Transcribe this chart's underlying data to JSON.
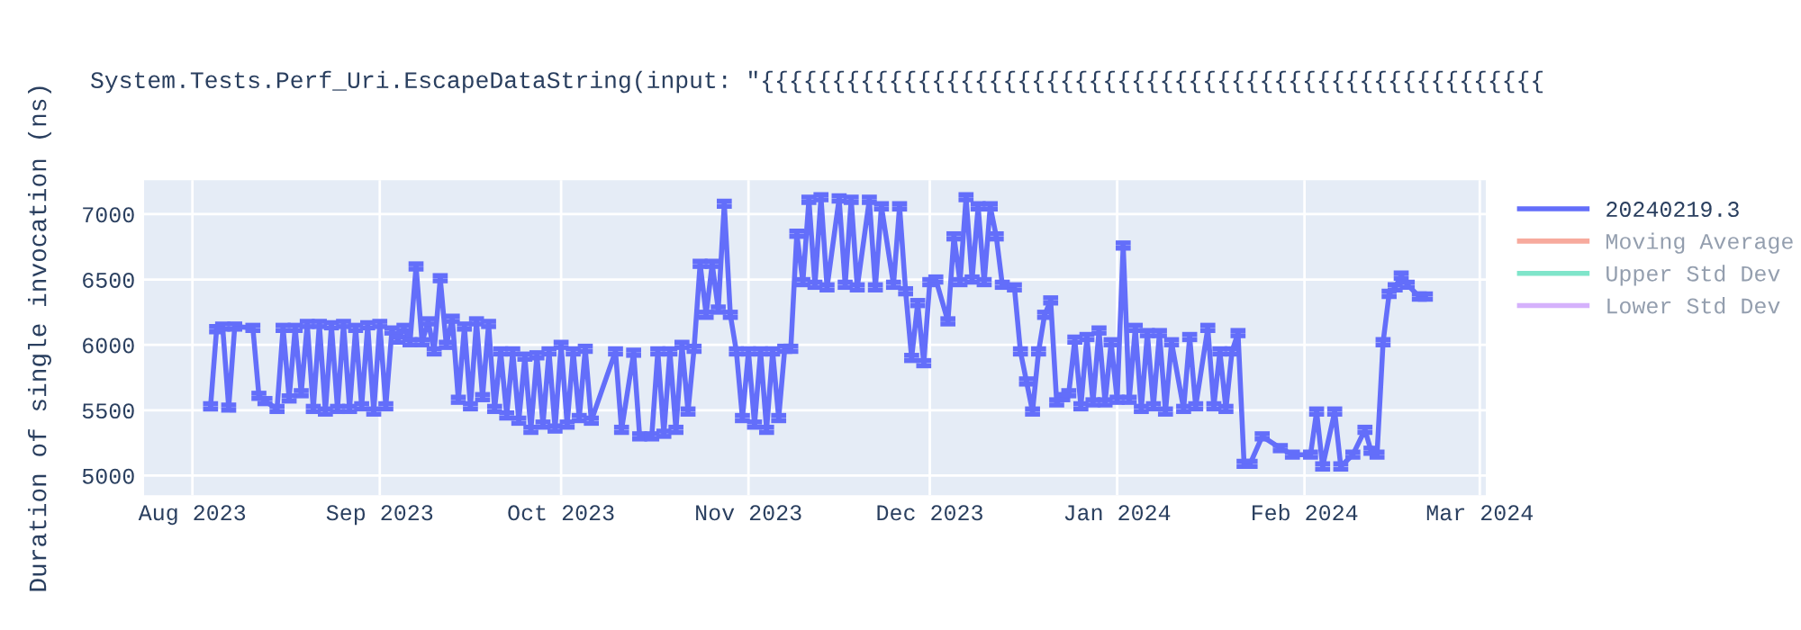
{
  "chart_data": {
    "type": "line",
    "title": "System.Tests.Perf_Uri.EscapeDataString(input: \"{{{{{{{{{{{{{{{{{{{{{{{{{{{{{{{{{{{{{{{{{{{{{{{{{{{{{{{",
    "ylabel": "Duration of single invocation (ns)",
    "xlim": [
      "2023-07-24",
      "2024-03-02"
    ],
    "xticks": [
      {
        "value": "2023-08-01",
        "label": "Aug 2023"
      },
      {
        "value": "2023-09-01",
        "label": "Sep 2023"
      },
      {
        "value": "2023-10-01",
        "label": "Oct 2023"
      },
      {
        "value": "2023-11-01",
        "label": "Nov 2023"
      },
      {
        "value": "2023-12-01",
        "label": "Dec 2023"
      },
      {
        "value": "2024-01-01",
        "label": "Jan 2024"
      },
      {
        "value": "2024-02-01",
        "label": "Feb 2024"
      },
      {
        "value": "2024-03-01",
        "label": "Mar 2024"
      }
    ],
    "ylim": [
      4850,
      7260
    ],
    "yticks": [
      5000,
      5500,
      6000,
      6500,
      7000
    ],
    "grid": true,
    "legend": "top right",
    "marker": "none",
    "line_style": "solid",
    "series": [
      {
        "name": "20240219.3",
        "color": "#636efa",
        "x": [
          "2023-08-04",
          "2023-08-05",
          "2023-08-06",
          "2023-08-07",
          "2023-08-08",
          "2023-08-11",
          "2023-08-12",
          "2023-08-13",
          "2023-08-15",
          "2023-08-16",
          "2023-08-17",
          "2023-08-18",
          "2023-08-19",
          "2023-08-20",
          "2023-08-21",
          "2023-08-22",
          "2023-08-23",
          "2023-08-24",
          "2023-08-25",
          "2023-08-26",
          "2023-08-27",
          "2023-08-28",
          "2023-08-29",
          "2023-08-30",
          "2023-08-31",
          "2023-09-01",
          "2023-09-02",
          "2023-09-03",
          "2023-09-04",
          "2023-09-05",
          "2023-09-06",
          "2023-09-07",
          "2023-09-08",
          "2023-09-09",
          "2023-09-10",
          "2023-09-11",
          "2023-09-12",
          "2023-09-13",
          "2023-09-14",
          "2023-09-15",
          "2023-09-16",
          "2023-09-17",
          "2023-09-18",
          "2023-09-19",
          "2023-09-20",
          "2023-09-21",
          "2023-09-22",
          "2023-09-23",
          "2023-09-24",
          "2023-09-25",
          "2023-09-26",
          "2023-09-27",
          "2023-09-28",
          "2023-09-29",
          "2023-09-30",
          "2023-10-01",
          "2023-10-02",
          "2023-10-03",
          "2023-10-04",
          "2023-10-05",
          "2023-10-06",
          "2023-10-10",
          "2023-10-11",
          "2023-10-13",
          "2023-10-14",
          "2023-10-16",
          "2023-10-17",
          "2023-10-18",
          "2023-10-19",
          "2023-10-20",
          "2023-10-21",
          "2023-10-22",
          "2023-10-23",
          "2023-10-24",
          "2023-10-25",
          "2023-10-26",
          "2023-10-27",
          "2023-10-28",
          "2023-10-29",
          "2023-10-30",
          "2023-10-31",
          "2023-11-01",
          "2023-11-02",
          "2023-11-03",
          "2023-11-04",
          "2023-11-05",
          "2023-11-06",
          "2023-11-07",
          "2023-11-08",
          "2023-11-09",
          "2023-11-10",
          "2023-11-11",
          "2023-11-12",
          "2023-11-13",
          "2023-11-14",
          "2023-11-16",
          "2023-11-17",
          "2023-11-18",
          "2023-11-19",
          "2023-11-21",
          "2023-11-22",
          "2023-11-23",
          "2023-11-25",
          "2023-11-26",
          "2023-11-27",
          "2023-11-28",
          "2023-11-29",
          "2023-11-30",
          "2023-12-01",
          "2023-12-02",
          "2023-12-04",
          "2023-12-05",
          "2023-12-06",
          "2023-12-07",
          "2023-12-08",
          "2023-12-09",
          "2023-12-10",
          "2023-12-11",
          "2023-12-12",
          "2023-12-13",
          "2023-12-15",
          "2023-12-16",
          "2023-12-17",
          "2023-12-18",
          "2023-12-19",
          "2023-12-20",
          "2023-12-21",
          "2023-12-22",
          "2023-12-23",
          "2023-12-24",
          "2023-12-25",
          "2023-12-26",
          "2023-12-27",
          "2023-12-28",
          "2023-12-29",
          "2023-12-30",
          "2023-12-31",
          "2024-01-01",
          "2024-01-02",
          "2024-01-03",
          "2024-01-04",
          "2024-01-05",
          "2024-01-06",
          "2024-01-07",
          "2024-01-08",
          "2024-01-09",
          "2024-01-10",
          "2024-01-12",
          "2024-01-13",
          "2024-01-14",
          "2024-01-16",
          "2024-01-17",
          "2024-01-18",
          "2024-01-19",
          "2024-01-20",
          "2024-01-21",
          "2024-01-22",
          "2024-01-23",
          "2024-01-25",
          "2024-01-28",
          "2024-01-30",
          "2024-02-02",
          "2024-02-03",
          "2024-02-04",
          "2024-02-06",
          "2024-02-07",
          "2024-02-09",
          "2024-02-11",
          "2024-02-12",
          "2024-02-13",
          "2024-02-14",
          "2024-02-15",
          "2024-02-16",
          "2024-02-17",
          "2024-02-18",
          "2024-02-20",
          "2024-02-21"
        ],
        "values": [
          5530,
          6120,
          6140,
          5520,
          6140,
          6130,
          5610,
          5570,
          5510,
          6130,
          5590,
          6130,
          5630,
          6160,
          5510,
          6160,
          5490,
          6150,
          5510,
          6160,
          5510,
          6130,
          5530,
          6150,
          5490,
          6160,
          5530,
          6110,
          6040,
          6130,
          6020,
          6600,
          6020,
          6180,
          5950,
          6510,
          6000,
          6200,
          5580,
          6140,
          5530,
          6180,
          5600,
          6160,
          5510,
          5950,
          5460,
          5950,
          5420,
          5910,
          5350,
          5920,
          5390,
          5950,
          5360,
          6000,
          5390,
          5950,
          5440,
          5970,
          5420,
          5950,
          5350,
          5940,
          5300,
          5300,
          5950,
          5320,
          5950,
          5350,
          6000,
          5490,
          5970,
          6620,
          6230,
          6620,
          6270,
          7080,
          6230,
          5950,
          5440,
          5950,
          5390,
          5950,
          5350,
          5950,
          5440,
          5970,
          5970,
          6850,
          6480,
          7110,
          6460,
          7130,
          6440,
          7120,
          6460,
          7110,
          6440,
          7110,
          6440,
          7060,
          6460,
          7060,
          6410,
          5900,
          6320,
          5860,
          6480,
          6500,
          6180,
          6830,
          6480,
          7130,
          6500,
          7060,
          6480,
          7060,
          6830,
          6460,
          6440,
          5950,
          5720,
          5490,
          5950,
          6230,
          6340,
          5560,
          5600,
          5630,
          6040,
          5530,
          6060,
          5560,
          6110,
          5560,
          6020,
          5580,
          6760,
          5580,
          6130,
          5510,
          6090,
          5530,
          6090,
          5490,
          6020,
          5510,
          6060,
          5530,
          6130,
          5530,
          5950,
          5510,
          5950,
          6090,
          5090,
          5090,
          5300,
          5210,
          5160,
          5160,
          5490,
          5070,
          5490,
          5070,
          5160,
          5350,
          5190,
          5160,
          6020,
          6390,
          6440,
          6530,
          6460,
          6370,
          6370
        ],
        "errors": [
          20,
          20,
          20,
          20,
          20,
          20,
          20,
          20,
          20,
          20,
          20,
          20,
          20,
          20,
          20,
          20,
          20,
          20,
          20,
          20,
          20,
          20,
          20,
          20,
          20,
          20,
          20,
          20,
          20,
          20,
          20,
          20,
          20,
          20,
          20,
          20,
          20,
          20,
          20,
          20,
          20,
          20,
          20,
          20,
          20,
          20,
          20,
          20,
          20,
          20,
          20,
          20,
          20,
          20,
          20,
          20,
          20,
          20,
          20,
          20,
          20,
          20,
          20,
          20,
          20,
          20,
          20,
          20,
          20,
          20,
          20,
          20,
          20,
          20,
          20,
          20,
          20,
          20,
          20,
          20,
          20,
          20,
          20,
          20,
          20,
          20,
          20,
          20,
          20,
          20,
          20,
          20,
          20,
          20,
          20,
          20,
          20,
          20,
          20,
          20,
          20,
          20,
          20,
          20,
          20,
          20,
          20,
          20,
          20,
          20,
          20,
          20,
          20,
          20,
          20,
          20,
          20,
          20,
          20,
          20,
          20,
          20,
          20,
          20,
          20,
          20,
          20,
          20,
          20,
          20,
          20,
          20,
          20,
          20,
          20,
          20,
          20,
          20,
          20,
          20,
          20,
          20,
          20,
          20,
          20,
          20,
          20,
          20,
          20,
          20,
          20,
          20,
          20,
          20,
          20,
          20,
          20,
          20,
          20,
          20,
          20,
          20,
          20,
          20,
          20,
          20,
          20,
          20,
          20,
          20,
          20,
          20,
          20,
          20,
          20,
          20,
          20
        ]
      },
      {
        "name": "Moving Average",
        "color": "#ef553b"
      },
      {
        "name": "Upper Std Dev",
        "color": "#00cc96"
      },
      {
        "name": "Lower Std Dev",
        "color": "#ab63fa"
      }
    ]
  }
}
